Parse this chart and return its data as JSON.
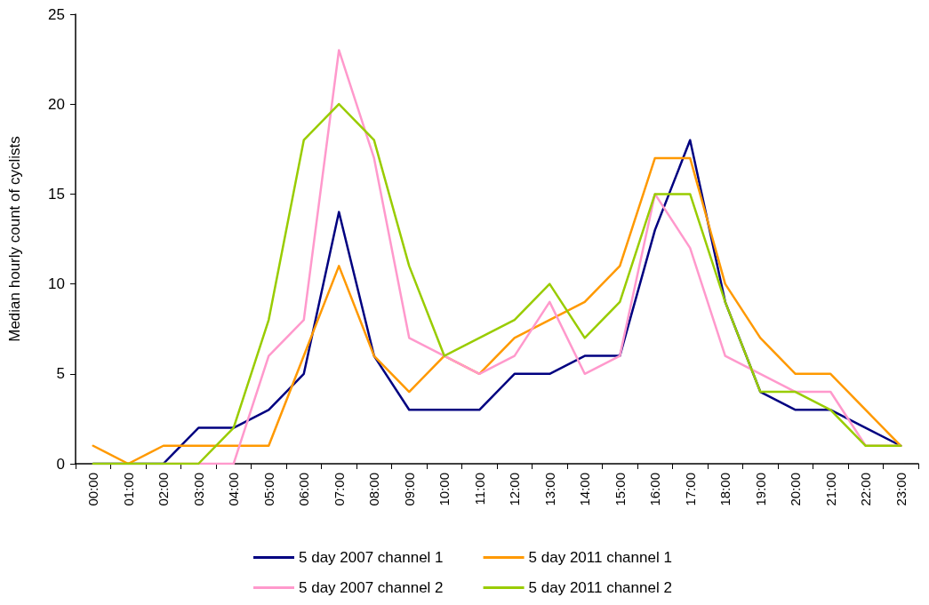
{
  "chart_data": {
    "type": "line",
    "ylabel": "Median hourly count of cyclists",
    "categories": [
      "00:00",
      "01:00",
      "02:00",
      "03:00",
      "04:00",
      "05:00",
      "06:00",
      "07:00",
      "08:00",
      "09:00",
      "10:00",
      "11:00",
      "12:00",
      "13:00",
      "14:00",
      "15:00",
      "16:00",
      "17:00",
      "18:00",
      "19:00",
      "20:00",
      "21:00",
      "22:00",
      "23:00"
    ],
    "series": [
      {
        "name": "5 day 2007 channel 1",
        "color": "#000080",
        "values": [
          0,
          0,
          0,
          2,
          2,
          3,
          5,
          14,
          6,
          3,
          3,
          3,
          5,
          5,
          6,
          6,
          13,
          18,
          9,
          4,
          3,
          3,
          2,
          1
        ]
      },
      {
        "name": "5 day 2011 channel 1",
        "color": "#ff9900",
        "values": [
          1,
          0,
          1,
          1,
          1,
          1,
          6,
          11,
          6,
          4,
          6,
          5,
          7,
          8,
          9,
          11,
          17,
          17,
          10,
          7,
          5,
          5,
          3,
          1
        ]
      },
      {
        "name": "5 day 2007 channel 2",
        "color": "#ff99cc",
        "values": [
          null,
          null,
          0,
          0,
          0,
          6,
          8,
          23,
          17,
          7,
          6,
          5,
          6,
          9,
          5,
          6,
          15,
          12,
          6,
          5,
          4,
          4,
          1,
          1
        ]
      },
      {
        "name": "5 day 2011 channel 2",
        "color": "#99cc00",
        "values": [
          0,
          0,
          0,
          0,
          2,
          8,
          18,
          20,
          18,
          11,
          6,
          7,
          8,
          10,
          7,
          9,
          15,
          15,
          9,
          4,
          4,
          3,
          1,
          1
        ]
      }
    ],
    "ylim": [
      0,
      25
    ],
    "yticks": [
      0,
      5,
      10,
      15,
      20,
      25
    ],
    "grid": false,
    "legend": "bottom",
    "marker": "none",
    "line_style": "solid"
  }
}
